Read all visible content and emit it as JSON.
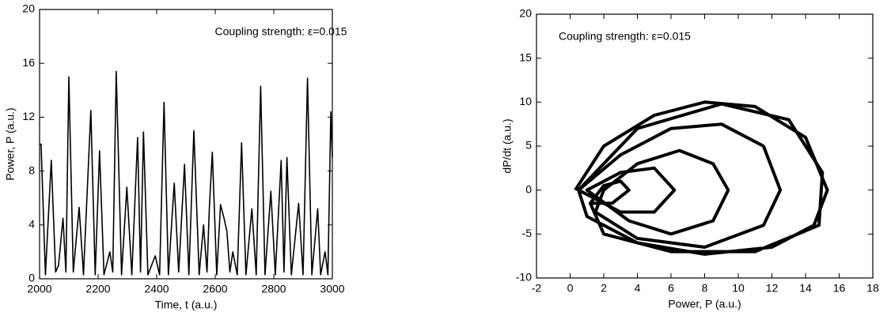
{
  "chart_data": [
    {
      "type": "line",
      "xlabel": "Time, t   (a.u.)",
      "ylabel": "Power,  P  (a.u.)",
      "annotation": "Coupling strength:  ε=0.015",
      "xlim": [
        2000,
        3000
      ],
      "xticks": [
        2000,
        2200,
        2400,
        2600,
        2800,
        3000
      ],
      "ylim": [
        0,
        20
      ],
      "yticks": [
        0,
        4,
        8,
        12,
        16,
        20
      ],
      "color": "#000000",
      "x": [
        2000,
        2005,
        2020,
        2040,
        2055,
        2065,
        2080,
        2090,
        2100,
        2115,
        2135,
        2150,
        2175,
        2190,
        2205,
        2220,
        2240,
        2250,
        2262,
        2280,
        2298,
        2315,
        2335,
        2345,
        2355,
        2370,
        2395,
        2410,
        2425,
        2440,
        2460,
        2475,
        2495,
        2510,
        2527,
        2545,
        2560,
        2572,
        2580,
        2590,
        2605,
        2618,
        2630,
        2640,
        2650,
        2660,
        2675,
        2690,
        2705,
        2725,
        2740,
        2755,
        2770,
        2790,
        2805,
        2825,
        2835,
        2845,
        2860,
        2885,
        2900,
        2915,
        2930,
        2950,
        2960,
        2975,
        2985,
        2995,
        3000
      ],
      "values": [
        10,
        10,
        0.3,
        8.8,
        0.5,
        1,
        4.5,
        0.5,
        15,
        0.5,
        5.3,
        0.3,
        12.5,
        0.3,
        9.5,
        0.3,
        2,
        0.5,
        15.4,
        0.3,
        6.8,
        0.3,
        10.5,
        0.5,
        10.9,
        0.3,
        1.7,
        0.3,
        13.1,
        0.3,
        7.1,
        0.5,
        8.5,
        0.3,
        11,
        0.3,
        4,
        0.5,
        5.3,
        9.4,
        0.3,
        5.5,
        4.5,
        3.5,
        0.5,
        2,
        0.3,
        10.1,
        0.3,
        5.2,
        0.3,
        14.3,
        0.3,
        6.5,
        0.3,
        8.8,
        0.5,
        9,
        0.3,
        5.6,
        0.3,
        14.9,
        0.3,
        5.2,
        0.3,
        2,
        0.3,
        12.4,
        9
      ],
      "stroke_width": 1.6
    },
    {
      "type": "line",
      "xlabel": "Power,  P   (a.u.)",
      "ylabel": "dP/dt   (a.u.)",
      "annotation": "Coupling strength:  ε=0.015",
      "xlim": [
        -2,
        18
      ],
      "xticks": [
        -2,
        0,
        2,
        4,
        6,
        8,
        10,
        12,
        14,
        16,
        18
      ],
      "ylim": [
        -10,
        20
      ],
      "yticks": [
        -10,
        -5,
        0,
        5,
        10,
        15,
        20
      ],
      "color": "#000000",
      "x": [
        0.3,
        2,
        5,
        8,
        11,
        14,
        15.3,
        14.5,
        12,
        8,
        4,
        1,
        0.5,
        3,
        6,
        9,
        11.5,
        12.5,
        11.5,
        8,
        4,
        1.5,
        2,
        4,
        6.5,
        8.5,
        9.4,
        8.5,
        6,
        3.5,
        1,
        3,
        5,
        6.2,
        5,
        3,
        0.5,
        4,
        9,
        13,
        15,
        14.8,
        11,
        6,
        2,
        1.2,
        2,
        3,
        3.5,
        2.5,
        1.2
      ],
      "values": [
        0,
        5,
        8.5,
        10,
        9.5,
        6,
        0,
        -4,
        -6.5,
        -7.3,
        -6,
        -3,
        0,
        4,
        7,
        7.5,
        5,
        0,
        -4,
        -6.5,
        -5.5,
        -2.5,
        0,
        3,
        4.5,
        3,
        0,
        -3.5,
        -5,
        -3.5,
        0,
        2,
        2.5,
        0,
        -2.5,
        -2.5,
        0,
        7,
        9.8,
        8,
        2,
        -4,
        -7,
        -7,
        -5,
        -1.5,
        0.5,
        1,
        0,
        -1.5,
        -1.5
      ],
      "stroke_width": 4
    }
  ]
}
